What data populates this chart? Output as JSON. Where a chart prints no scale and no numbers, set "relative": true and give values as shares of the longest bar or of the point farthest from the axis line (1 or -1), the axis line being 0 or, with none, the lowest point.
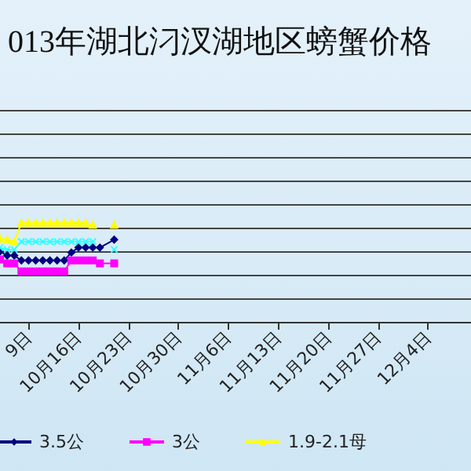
{
  "chart_data": {
    "type": "line",
    "title": "013年湖北汈汊湖地区螃蟹价格",
    "relative": true,
    "grid": "y",
    "legend": "bottom",
    "x": [
      "--10-05",
      "--10-06",
      "--10-07",
      "--10-08",
      "--10-09",
      "--10-10",
      "--10-11",
      "--10-12",
      "--10-13",
      "--10-14",
      "--10-15",
      "--10-16",
      "--10-17",
      "--10-18",
      "--10-19",
      "--10-21"
    ],
    "xlim": [
      "--10-05",
      "--12-10"
    ],
    "xticks": [
      {
        "value": "--10-09",
        "label": "9日"
      },
      {
        "value": "--10-16",
        "label": "10月16日"
      },
      {
        "value": "--10-23",
        "label": "10月23日"
      },
      {
        "value": "--10-30",
        "label": "10月30日"
      },
      {
        "value": "--11-06",
        "label": "11月6日"
      },
      {
        "value": "--11-13",
        "label": "11月13日"
      },
      {
        "value": "--11-20",
        "label": "11月20日"
      },
      {
        "value": "--11-27",
        "label": "11月27日"
      },
      {
        "value": "--12-04",
        "label": "12月4日"
      }
    ],
    "series": [
      {
        "name": "3.5公",
        "color": "#000080",
        "marker": "diamond",
        "values": [
          0.71,
          0.67,
          0.67,
          0.62,
          0.62,
          0.62,
          0.62,
          0.62,
          0.62,
          0.62,
          0.7,
          0.75,
          0.75,
          0.75,
          0.75,
          0.83
        ]
      },
      {
        "name": "3公",
        "color": "#ff00ff",
        "marker": "square",
        "values": [
          0.63,
          0.59,
          0.59,
          0.51,
          0.51,
          0.51,
          0.51,
          0.51,
          0.51,
          0.51,
          0.62,
          0.62,
          0.62,
          0.62,
          0.59,
          0.59
        ]
      },
      {
        "name": "1.9-2.1母",
        "color": "#ffff00",
        "marker": "triangle",
        "values": [
          0.84,
          0.83,
          0.81,
          1,
          1,
          1,
          1,
          1,
          1,
          1,
          1,
          1,
          1,
          0.98,
          null,
          0.98
        ]
      },
      {
        "color": "#33ffff",
        "marker": "cross",
        "values": [
          0.75,
          0.73,
          0.73,
          0.81,
          0.81,
          0.81,
          0.81,
          0.81,
          0.81,
          0.81,
          0.81,
          0.81,
          0.81,
          0.81,
          null,
          0.73
        ]
      }
    ]
  }
}
